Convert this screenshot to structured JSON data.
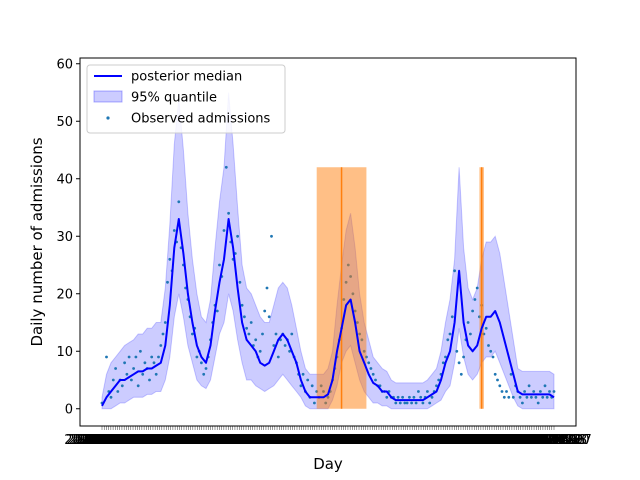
{
  "chart_data": {
    "type": "line",
    "title": "",
    "xlabel": "Day",
    "ylabel": "Daily number of admissions",
    "ylim": [
      -3,
      61
    ],
    "y_ticks": [
      0,
      10,
      20,
      30,
      40,
      50,
      60
    ],
    "x_range": [
      0,
      200
    ],
    "x_tick_labels": [
      "2020-02-29",
      "2020-03-07",
      "2020-03-14",
      "2020-03-21",
      "2020-03-28",
      "2020-04-04",
      "2020-04-11",
      "2020-04-18",
      "2020-04-25",
      "2020-05-02",
      "2020-05-09",
      "2020-05-16",
      "2020-05-23",
      "2020-05-30",
      "2020-06-06",
      "2020-06-13",
      "2020-06-20",
      "2020-06-27",
      "2020-07-04",
      "2020-07-11",
      "2020-07-18",
      "2020-07-25",
      "2020-08-01",
      "2020-08-08",
      "2020-08-15",
      "2020-08-22",
      "2020-08-29",
      "2020-09-05",
      "2020-09-12",
      "2020-09-19",
      "2020-09-26",
      "2020-10-03",
      "2020-10-10",
      "2020-10-17",
      "2020-10-24",
      "2020-10-31",
      "2020-11-07",
      "2020-11-14",
      "2020-11-21",
      "2020-11-28",
      "2020-12-05",
      "2020-12-12",
      "2020-12-19",
      "2020-12-26",
      "2021-01-02",
      "2021-01-09",
      "2021-01-16",
      "2021-01-23",
      "2021-01-30",
      "2021-02-06",
      "2021-02-13",
      "2021-02-20",
      "2021-02-27",
      "2021-03-06",
      "2021-03-13",
      "2021-03-20",
      "2021-03-27",
      "2021-04-03",
      "2021-04-10",
      "2021-04-17",
      "2021-04-24",
      "2021-05-01",
      "2021-05-08",
      "2021-05-15",
      "2021-05-22",
      "2021-05-29",
      "2021-06-05",
      "2021-06-12",
      "2021-06-19",
      "2021-06-26",
      "2021-07-03",
      "2021-07-10",
      "2021-07-17",
      "2021-07-24",
      "2021-07-31",
      "2021-08-07",
      "2021-08-14",
      "2021-08-21",
      "2021-08-28",
      "2021-09-04",
      "2021-09-11",
      "2021-09-18",
      "2021-09-25",
      "2021-10-02",
      "2021-10-09",
      "2021-10-16",
      "2021-10-23",
      "2021-10-30",
      "2021-11-06",
      "2021-11-13",
      "2021-11-20",
      "2021-11-27",
      "2021-12-04",
      "2021-12-11",
      "2021-12-18",
      "2021-12-25",
      "2022-01-01",
      "2022-01-08",
      "2022-01-15",
      "2022-01-22",
      "2022-01-29",
      "2022-02-05",
      "2022-02-12",
      "2022-02-19",
      "2022-02-26",
      "2022-03-05",
      "2022-03-12",
      "2022-03-19",
      "2022-03-26",
      "2022-04-02",
      "2022-04-09",
      "2022-04-16",
      "2022-04-23",
      "2022-04-30",
      "2022-05-07",
      "2022-05-14",
      "2022-05-21",
      "2022-05-28",
      "2022-06-04",
      "2022-06-11",
      "2022-06-18",
      "2022-06-25",
      "2022-07-02",
      "2022-07-09",
      "2022-07-16",
      "2022-07-23",
      "2022-07-30",
      "2022-08-06",
      "2022-08-13",
      "2022-08-20",
      "2022-08-27",
      "2022-09-03",
      "2022-09-10",
      "2022-09-17",
      "2022-09-24",
      "2022-10-01",
      "2022-10-08",
      "2022-10-15",
      "2022-10-22",
      "2022-10-29",
      "2022-11-05",
      "2022-11-12",
      "2022-11-19",
      "2022-11-26",
      "2022-12-03",
      "2022-12-10",
      "2022-12-17",
      "2022-12-24",
      "2022-12-31",
      "2023-01-07",
      "2023-01-14",
      "2023-01-21",
      "2023-01-28",
      "2023-02-04",
      "2023-02-11",
      "2023-02-18",
      "2023-02-25",
      "2023-03-04",
      "2023-03-11",
      "2023-03-18",
      "2023-03-25",
      "2023-04-01",
      "2023-04-08",
      "2023-04-15",
      "2023-04-22",
      "2023-04-29",
      "2023-05-06",
      "2023-05-13",
      "2023-05-20",
      "2023-05-27",
      "2023-06-03",
      "2023-06-10",
      "2023-06-17",
      "2023-06-24",
      "2023-07-01",
      "2023-07-08",
      "2023-07-15",
      "2023-07-22",
      "2023-07-29",
      "2023-08-05",
      "2023-08-12",
      "2023-08-19",
      "2023-08-26",
      "2023-09-02",
      "2023-09-09",
      "2023-09-16",
      "2023-09-23",
      "2023-09-30",
      "2023-10-07",
      "2023-10-14",
      "2023-10-21",
      "2023-10-28",
      "2023-11-04",
      "2023-11-11",
      "2023-11-18",
      "2023-11-25",
      "2023-12-02",
      "2023-12-09",
      "2023-12-16",
      "2023-12-23",
      "2023-12-30",
      "2024-01-06",
      "2024-01-13",
      "2024-01-20",
      "2024-01-27"
    ],
    "legend": {
      "placement": "top-left",
      "entries": [
        "posterior median",
        "95% quantile",
        "Observed admissions"
      ]
    },
    "median": {
      "name": "posterior median",
      "color": "#0000ff",
      "x": [
        0,
        2,
        4,
        6,
        8,
        10,
        12,
        14,
        16,
        18,
        20,
        22,
        24,
        26,
        28,
        30,
        32,
        34,
        36,
        38,
        40,
        42,
        44,
        46,
        48,
        50,
        52,
        54,
        56,
        58,
        60,
        62,
        64,
        66,
        68,
        70,
        72,
        74,
        76,
        78,
        80,
        82,
        84,
        86,
        88,
        90,
        92,
        94,
        96,
        98,
        100,
        102,
        104,
        106,
        108,
        110,
        112,
        114,
        116,
        118,
        120,
        122,
        124,
        126,
        128,
        130,
        132,
        134,
        136,
        138,
        140,
        142,
        144,
        146,
        148,
        150,
        152,
        154,
        156,
        158,
        160,
        162,
        164,
        166,
        168,
        170,
        172,
        174,
        176,
        178,
        180,
        182,
        184,
        186,
        188,
        190,
        192,
        194,
        196,
        198,
        200
      ],
      "y": [
        0.5,
        2,
        3,
        4,
        5,
        5,
        5.5,
        6,
        6.5,
        6.5,
        7,
        7,
        7.5,
        8,
        11,
        18,
        28,
        33,
        27,
        20,
        15,
        11,
        9,
        8,
        11,
        17,
        22,
        26,
        33,
        28,
        21,
        15,
        12,
        11,
        10,
        8,
        7.5,
        8,
        10,
        12,
        13,
        12,
        10,
        8,
        5,
        3,
        2,
        2,
        2,
        2,
        2.5,
        5,
        10,
        14,
        18,
        19,
        15,
        10,
        8,
        6,
        4.5,
        4,
        3,
        3,
        2,
        1.5,
        1.5,
        1.5,
        1.5,
        1.5,
        1.5,
        1.5,
        2,
        2.5,
        3,
        5,
        8,
        10,
        15,
        24,
        15,
        11,
        10,
        11,
        14,
        16,
        16,
        17,
        15,
        12,
        9,
        6,
        3,
        2.5,
        2.5,
        2.5,
        2.5,
        2.5,
        2.5,
        2.5,
        2
      ]
    },
    "quantile_95": {
      "name": "95% quantile",
      "color": "#0000ff",
      "x": [
        0,
        2,
        4,
        6,
        8,
        10,
        12,
        14,
        16,
        18,
        20,
        22,
        24,
        26,
        28,
        30,
        32,
        34,
        36,
        38,
        40,
        42,
        44,
        46,
        48,
        50,
        52,
        54,
        56,
        58,
        60,
        62,
        64,
        66,
        68,
        70,
        72,
        74,
        76,
        78,
        80,
        82,
        84,
        86,
        88,
        90,
        92,
        94,
        96,
        98,
        100,
        102,
        104,
        106,
        108,
        110,
        112,
        114,
        116,
        118,
        120,
        122,
        124,
        126,
        128,
        130,
        132,
        134,
        136,
        138,
        140,
        142,
        144,
        146,
        148,
        150,
        152,
        154,
        156,
        158,
        160,
        162,
        164,
        166,
        168,
        170,
        172,
        174,
        176,
        178,
        180,
        182,
        184,
        186,
        188,
        190,
        192,
        194,
        196,
        198,
        200
      ],
      "lower": [
        0,
        0,
        0,
        0.5,
        1,
        1,
        1.5,
        2,
        2,
        2,
        2.5,
        2.5,
        3,
        3,
        5,
        9,
        16,
        20,
        16,
        11,
        8,
        5,
        4,
        3.5,
        5,
        9,
        13,
        15,
        20,
        17,
        12,
        8,
        5,
        5,
        4,
        3.5,
        3,
        3.5,
        4,
        5,
        6,
        5,
        4,
        3,
        2,
        0.5,
        0,
        0,
        0,
        0,
        0,
        1.5,
        4,
        8,
        10,
        11,
        8,
        5,
        3,
        2,
        1,
        1,
        0.5,
        0.5,
        0,
        0,
        0,
        0,
        0,
        0,
        0,
        0,
        0,
        0.5,
        1,
        1.5,
        3,
        4,
        8,
        14,
        9,
        6,
        5,
        6,
        8,
        9,
        9,
        10,
        8,
        6,
        4,
        2,
        0.5,
        0,
        0,
        0,
        0,
        0,
        0,
        0,
        0
      ],
      "upper": [
        2,
        6,
        8,
        9,
        10,
        11,
        11.5,
        12,
        13,
        13,
        14,
        14,
        15,
        15,
        21,
        32,
        46,
        54,
        45,
        34,
        26,
        20,
        16,
        15,
        19,
        28,
        36,
        42,
        55,
        46,
        35,
        25,
        21,
        20,
        18,
        16,
        15,
        15,
        18,
        21,
        22,
        21,
        18,
        14,
        10,
        7,
        6,
        6,
        6,
        6,
        7,
        10,
        18,
        25,
        31,
        34,
        28,
        20,
        15,
        12,
        9,
        8,
        7,
        6.5,
        5,
        4.5,
        4.5,
        4.5,
        4.5,
        4.5,
        4.5,
        4.5,
        5,
        6,
        7,
        10,
        15,
        19,
        26,
        42,
        28,
        21,
        19,
        21,
        26,
        29,
        29,
        30,
        27,
        22,
        17,
        12,
        7,
        6.5,
        6.5,
        6.5,
        6.5,
        6.5,
        6.5,
        6.5,
        6
      ]
    },
    "observed": {
      "name": "Observed admissions",
      "color": "#1f77b4",
      "x": [
        0,
        2,
        3,
        4,
        5,
        6,
        7,
        8,
        9,
        10,
        11,
        12,
        13,
        14,
        15,
        16,
        17,
        18,
        19,
        20,
        21,
        22,
        23,
        24,
        25,
        26,
        27,
        28,
        29,
        30,
        31,
        32,
        33,
        34,
        35,
        36,
        37,
        38,
        39,
        40,
        41,
        42,
        43,
        44,
        45,
        46,
        47,
        48,
        49,
        50,
        51,
        52,
        53,
        54,
        55,
        56,
        57,
        58,
        59,
        60,
        61,
        62,
        63,
        64,
        65,
        66,
        67,
        68,
        69,
        70,
        71,
        72,
        73,
        74,
        75,
        76,
        77,
        78,
        79,
        80,
        81,
        82,
        83,
        84,
        85,
        86,
        87,
        88,
        89,
        90,
        91,
        92,
        93,
        94,
        95,
        96,
        97,
        98,
        99,
        100,
        101,
        102,
        103,
        104,
        105,
        106,
        107,
        108,
        109,
        110,
        111,
        112,
        113,
        114,
        115,
        116,
        117,
        118,
        119,
        120,
        121,
        122,
        123,
        124,
        125,
        126,
        127,
        128,
        129,
        130,
        131,
        132,
        133,
        134,
        135,
        136,
        137,
        138,
        139,
        140,
        141,
        142,
        143,
        144,
        145,
        146,
        147,
        148,
        149,
        150,
        151,
        152,
        153,
        154,
        155,
        156,
        157,
        158,
        159,
        160,
        161,
        162,
        163,
        164,
        165,
        166,
        167,
        168,
        169,
        170,
        171,
        172,
        173,
        174,
        175,
        176,
        177,
        178,
        179,
        180,
        181,
        182,
        183,
        184,
        185,
        186,
        187,
        188,
        189,
        190,
        191,
        192,
        193,
        194,
        195,
        196,
        197,
        198,
        199,
        200
      ],
      "y": [
        1,
        9,
        3,
        2,
        5,
        7,
        3,
        5,
        4,
        8,
        6,
        9,
        5,
        7,
        9,
        4,
        10,
        6,
        8,
        7,
        5,
        9,
        8,
        6,
        9,
        11,
        13,
        15,
        22,
        26,
        24,
        31,
        29,
        36,
        28,
        25,
        21,
        19,
        16,
        13,
        14,
        9,
        10,
        8,
        6,
        7,
        9,
        12,
        15,
        18,
        17,
        25,
        23,
        31,
        42,
        34,
        29,
        26,
        27,
        30,
        22,
        18,
        16,
        14,
        13,
        15,
        11,
        12,
        9,
        10,
        13,
        17,
        21,
        16,
        30,
        11,
        13,
        9,
        12,
        13,
        11,
        12,
        10,
        13,
        9,
        8,
        6,
        4,
        6,
        3,
        5,
        2,
        4,
        1,
        3,
        2,
        4,
        3,
        1,
        2,
        3,
        5,
        7,
        9,
        12,
        14,
        19,
        22,
        25,
        23,
        20,
        17,
        15,
        13,
        12,
        10,
        9,
        8,
        7,
        6,
        5,
        4,
        4,
        3,
        3,
        2,
        3,
        2,
        2,
        1,
        2,
        1,
        2,
        1,
        1,
        2,
        1,
        2,
        1,
        3,
        2,
        1,
        2,
        3,
        1,
        2,
        3,
        4,
        5,
        6,
        8,
        9,
        12,
        13,
        16,
        24,
        10,
        8,
        6,
        9,
        12,
        15,
        13,
        17,
        19,
        21,
        16,
        18,
        13,
        14,
        11,
        10,
        9,
        6,
        5,
        4,
        3,
        2,
        3,
        2,
        6,
        2,
        4,
        3,
        2,
        1,
        3,
        2,
        4,
        2,
        3,
        2,
        1,
        3,
        2,
        4,
        2,
        3,
        2,
        3
      ]
    },
    "highlights": [
      {
        "x0": 95,
        "x1": 117,
        "y0": 0,
        "y1": 42,
        "center_x": 106,
        "fill": "#ff7f0e"
      },
      {
        "x0": 167,
        "x1": 169,
        "y0": 0,
        "y1": 42,
        "center_x": 168,
        "fill": "#ff7f0e"
      }
    ]
  }
}
